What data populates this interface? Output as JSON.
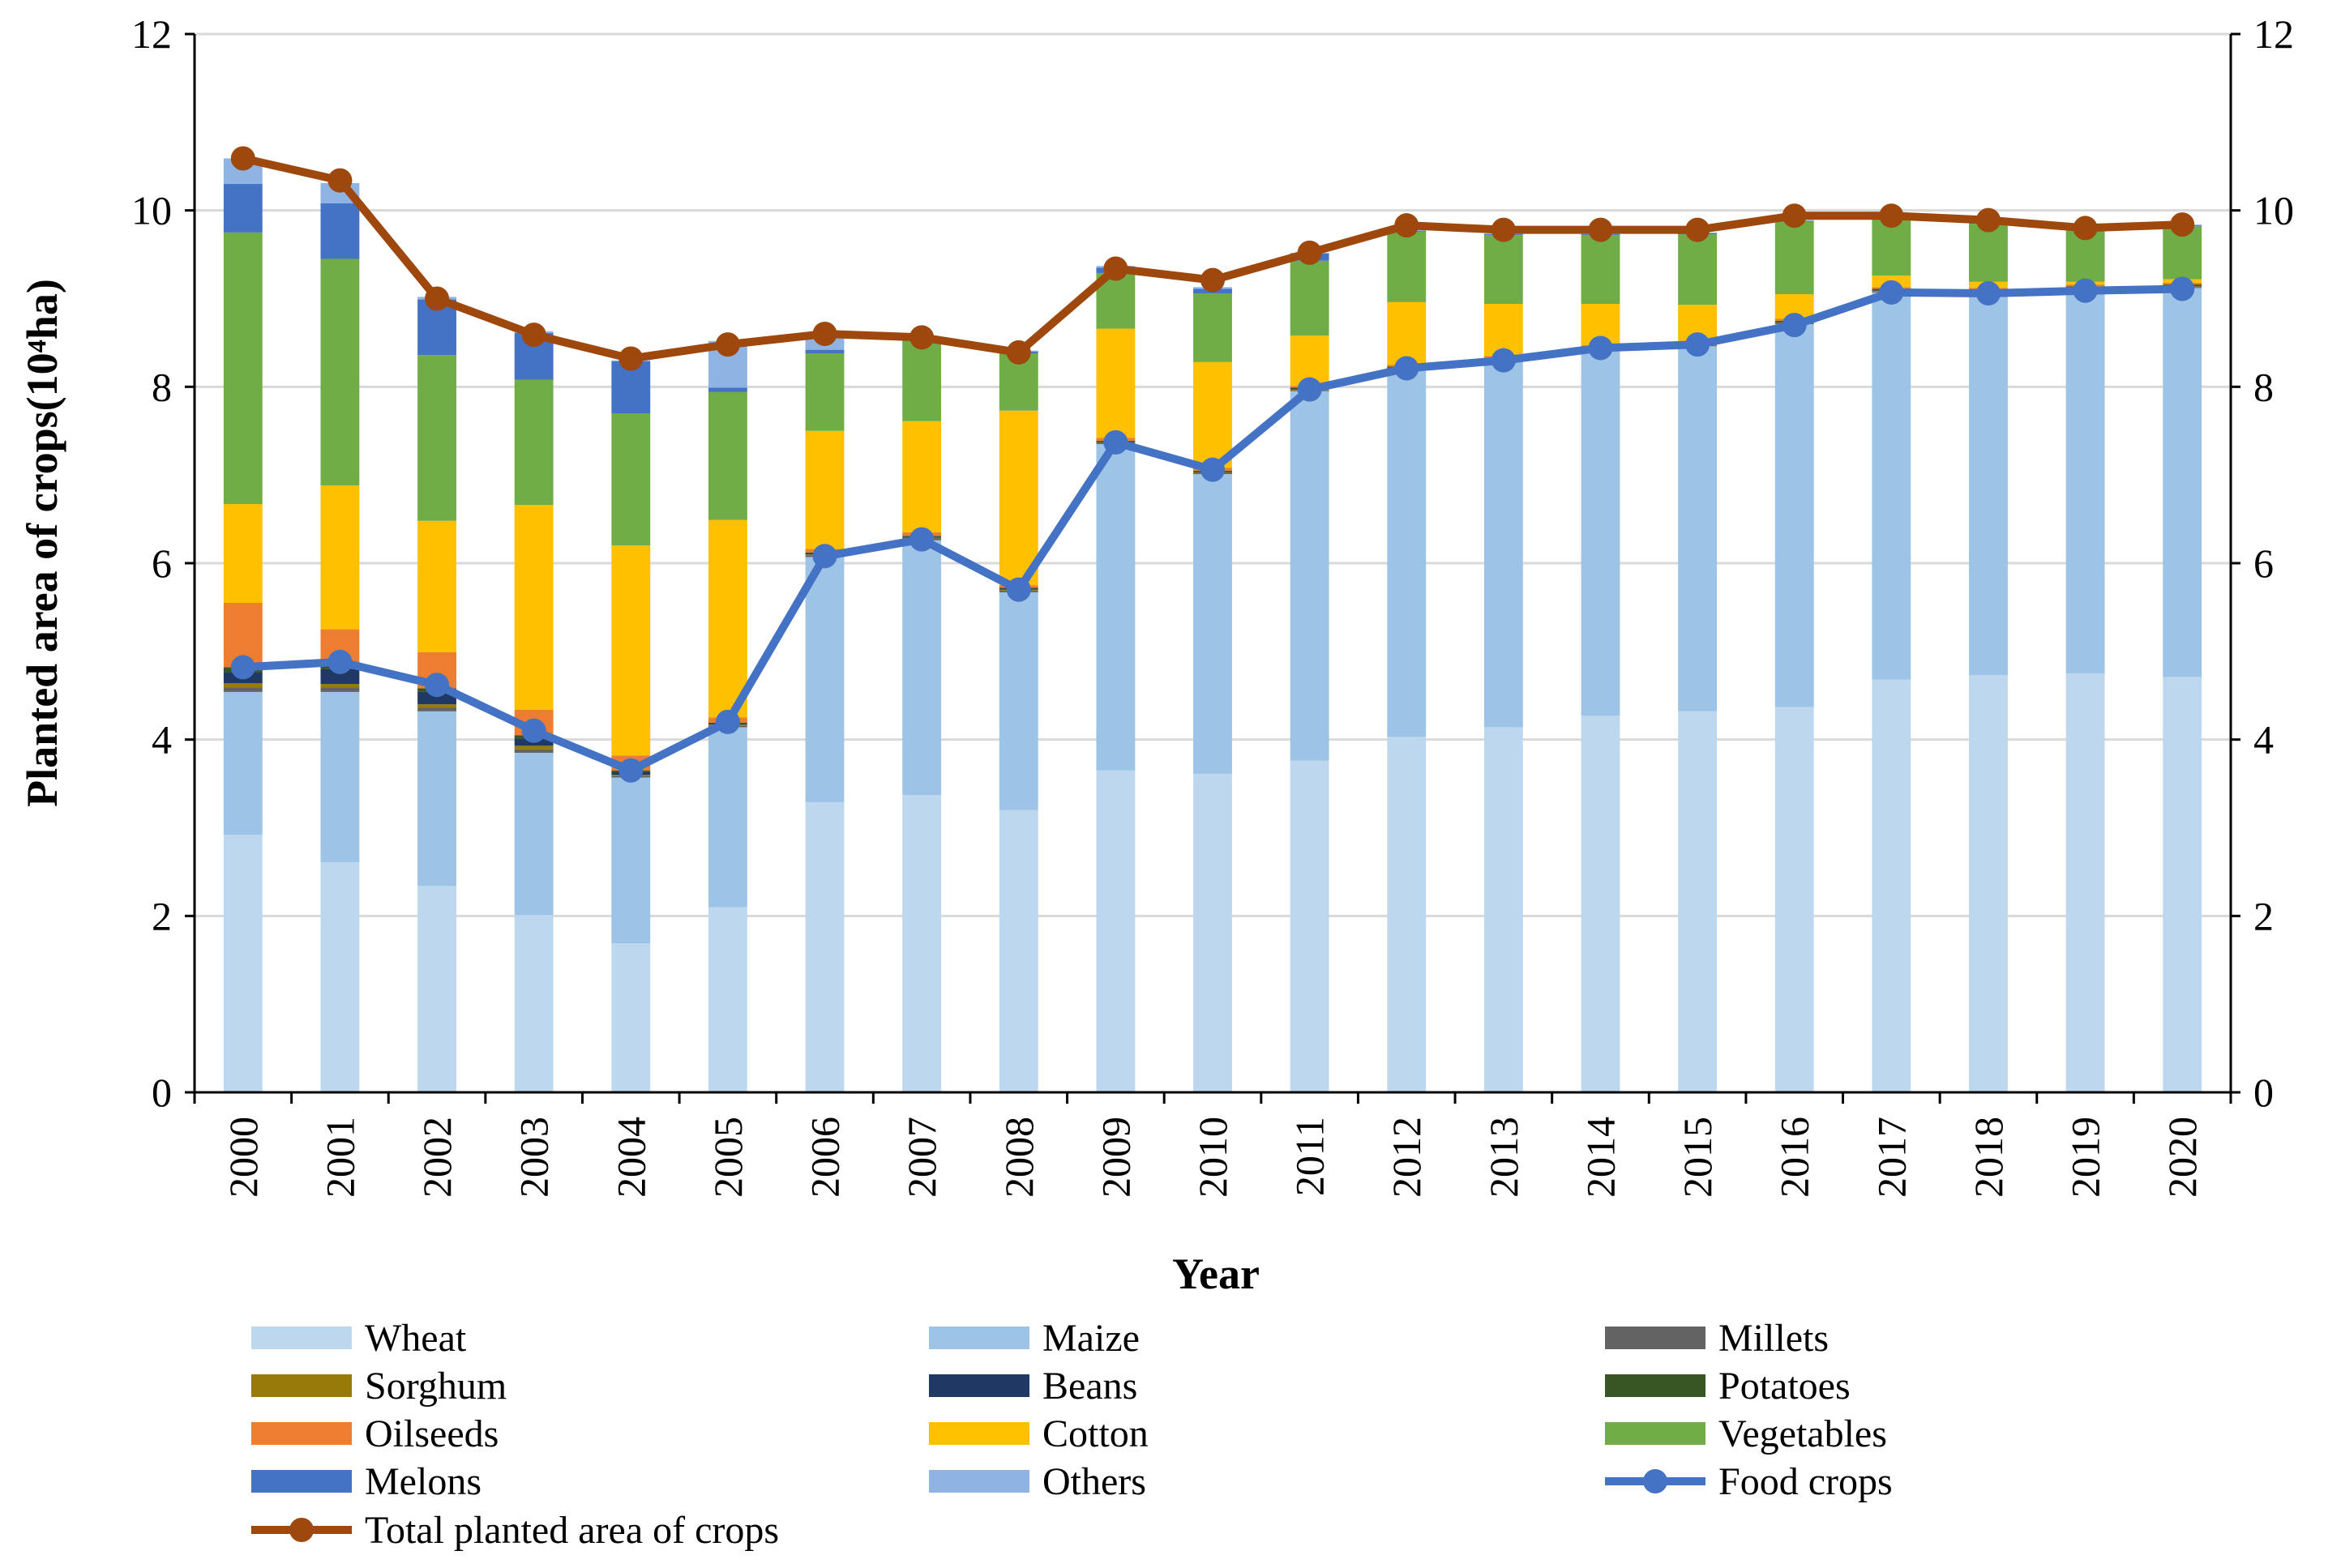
{
  "chart_data": {
    "type": "bar",
    "stacked": true,
    "title": "",
    "xlabel": "Year",
    "ylabel": "Planted area of crops(10⁴ha)",
    "ylim": [
      0,
      12
    ],
    "y2lim": [
      0,
      12
    ],
    "yticks": [
      "0",
      "2",
      "4",
      "6",
      "8",
      "10",
      "12"
    ],
    "y2ticks": [
      "0",
      "2",
      "4",
      "6",
      "8",
      "10",
      "12"
    ],
    "grid": true,
    "legend_position": "bottom",
    "categories": [
      "2000",
      "2001",
      "2002",
      "2003",
      "2004",
      "2005",
      "2006",
      "2007",
      "2008",
      "2009",
      "2010",
      "2011",
      "2012",
      "2013",
      "2014",
      "2015",
      "2016",
      "2017",
      "2018",
      "2019",
      "2020"
    ],
    "series": [
      {
        "name": "Wheat",
        "type": "bar",
        "color": "#BDD7EE",
        "values": [
          2.92,
          2.61,
          2.34,
          2.01,
          1.69,
          2.1,
          3.29,
          3.37,
          3.2,
          3.65,
          3.61,
          3.76,
          4.03,
          4.14,
          4.27,
          4.32,
          4.37,
          4.68,
          4.73,
          4.75,
          4.71
        ]
      },
      {
        "name": "Maize",
        "type": "bar",
        "color": "#9DC3E6",
        "values": [
          1.62,
          1.93,
          1.98,
          1.84,
          1.88,
          2.04,
          2.78,
          2.89,
          2.47,
          3.7,
          3.4,
          4.19,
          4.16,
          4.15,
          4.14,
          4.14,
          4.34,
          4.39,
          4.33,
          4.35,
          4.41
        ]
      },
      {
        "name": "Millets",
        "type": "bar",
        "color": "#636363",
        "values": [
          0.05,
          0.05,
          0.04,
          0.04,
          0.02,
          0.02,
          0.02,
          0.02,
          0.02,
          0.01,
          0.01,
          0.01,
          0.01,
          0.01,
          0.01,
          0.01,
          0.01,
          0.01,
          0.01,
          0.01,
          0.01
        ]
      },
      {
        "name": "Sorghum",
        "type": "bar",
        "color": "#977A0A",
        "values": [
          0.05,
          0.04,
          0.04,
          0.04,
          0.01,
          0.01,
          0.01,
          0.01,
          0.01,
          0.01,
          0.01,
          0.01,
          0.01,
          0.01,
          0.01,
          0.01,
          0.01,
          0.01,
          0.01,
          0.01,
          0.01
        ]
      },
      {
        "name": "Beans",
        "type": "bar",
        "color": "#203864",
        "values": [
          0.12,
          0.17,
          0.14,
          0.08,
          0.03,
          0.01,
          0.01,
          0.01,
          0.01,
          0.01,
          0.01,
          0.01,
          0.01,
          0.01,
          0.01,
          0.01,
          0.01,
          0.01,
          0.01,
          0.01,
          0.01
        ]
      },
      {
        "name": "Potatoes",
        "type": "bar",
        "color": "#375623",
        "values": [
          0.06,
          0.05,
          0.04,
          0.04,
          0.02,
          0.01,
          0.01,
          0.01,
          0.01,
          0.01,
          0.01,
          0.01,
          0.01,
          0.01,
          0.01,
          0.01,
          0.01,
          0.01,
          0.01,
          0.01,
          0.01
        ]
      },
      {
        "name": "Oilseeds",
        "type": "bar",
        "color": "#ED7D31",
        "values": [
          0.73,
          0.4,
          0.41,
          0.29,
          0.17,
          0.06,
          0.04,
          0.04,
          0.03,
          0.03,
          0.03,
          0.02,
          0.02,
          0.02,
          0.02,
          0.02,
          0.02,
          0.02,
          0.02,
          0.02,
          0.02
        ]
      },
      {
        "name": "Cotton",
        "type": "bar",
        "color": "#FFC000",
        "values": [
          1.12,
          1.63,
          1.49,
          2.32,
          2.38,
          2.24,
          1.34,
          1.26,
          1.98,
          1.24,
          1.2,
          0.57,
          0.71,
          0.59,
          0.47,
          0.41,
          0.28,
          0.13,
          0.07,
          0.03,
          0.04
        ]
      },
      {
        "name": "Vegetables",
        "type": "bar",
        "color": "#70AD47",
        "values": [
          3.08,
          2.57,
          1.88,
          1.42,
          1.5,
          1.45,
          0.88,
          0.92,
          0.65,
          0.63,
          0.78,
          0.85,
          0.8,
          0.78,
          0.78,
          0.8,
          0.82,
          0.65,
          0.66,
          0.59,
          0.6
        ]
      },
      {
        "name": "Melons",
        "type": "bar",
        "color": "#4472C4",
        "values": [
          0.55,
          0.63,
          0.63,
          0.53,
          0.59,
          0.05,
          0.04,
          0.03,
          0.02,
          0.06,
          0.05,
          0.08,
          0.01,
          0.01,
          0.01,
          0.01,
          0.01,
          0.01,
          0.01,
          0.01,
          0.01
        ]
      },
      {
        "name": "Others",
        "type": "bar",
        "color": "#8FB4E3",
        "values": [
          0.29,
          0.23,
          0.03,
          0.02,
          0.01,
          0.53,
          0.16,
          0.01,
          0.01,
          0.02,
          0.02,
          0.01,
          0.01,
          0.01,
          0.01,
          0.01,
          0.01,
          0.01,
          0.01,
          0.01,
          0.01
        ]
      },
      {
        "name": "Food crops",
        "type": "line",
        "color": "#4472C4",
        "values": [
          4.82,
          4.88,
          4.62,
          4.1,
          3.65,
          4.2,
          6.08,
          6.27,
          5.7,
          7.37,
          7.06,
          7.97,
          8.21,
          8.3,
          8.44,
          8.48,
          8.7,
          9.07,
          9.06,
          9.09,
          9.11
        ]
      },
      {
        "name": "Total planted area of crops",
        "type": "line",
        "color": "#9E480E",
        "values": [
          10.59,
          10.34,
          9.0,
          8.59,
          8.32,
          8.48,
          8.6,
          8.56,
          8.39,
          9.34,
          9.21,
          9.52,
          9.83,
          9.78,
          9.78,
          9.78,
          9.94,
          9.94,
          9.89,
          9.8,
          9.84
        ]
      }
    ]
  }
}
